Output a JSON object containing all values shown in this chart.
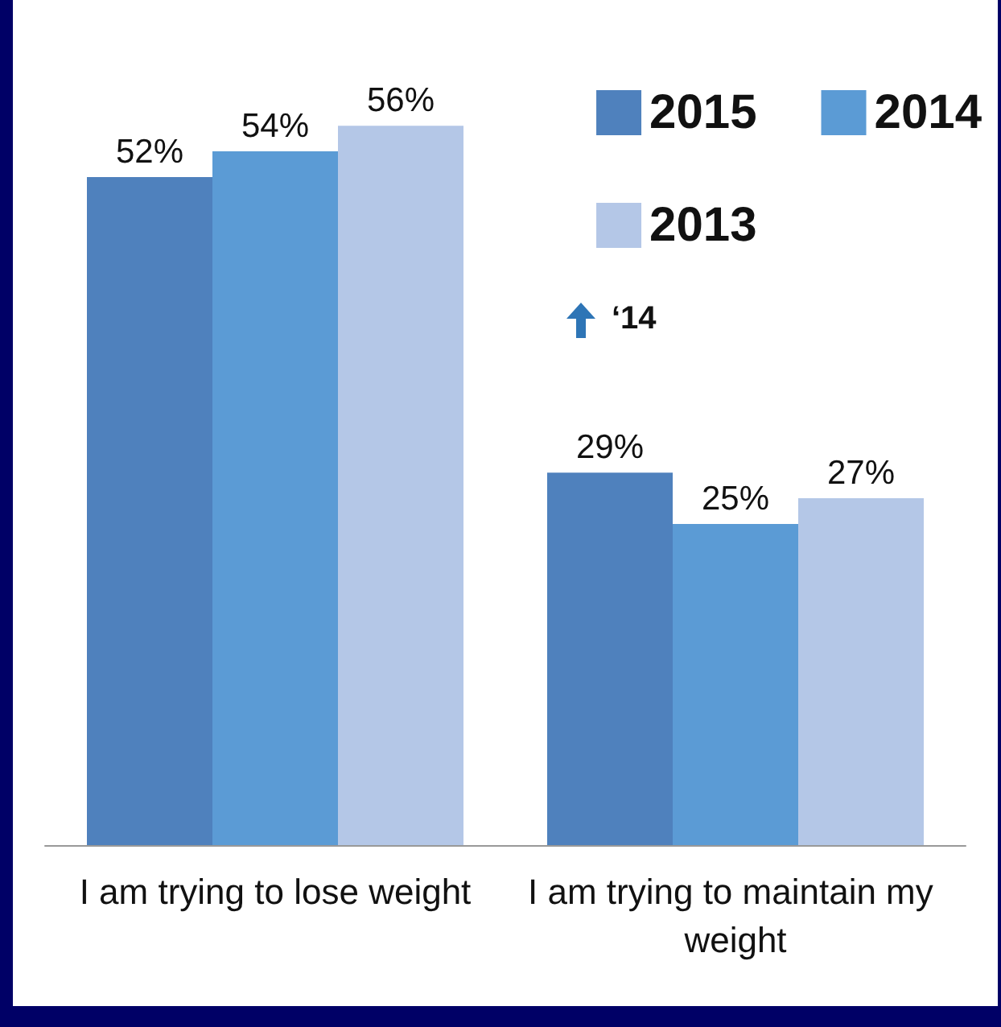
{
  "chart_data": {
    "type": "bar",
    "categories": [
      "I am trying to lose weight",
      "I am trying to maintain my weight"
    ],
    "series": [
      {
        "name": "2015",
        "color": "#4f81bd",
        "values": [
          52,
          29
        ],
        "value_labels": [
          "52%",
          "29%"
        ]
      },
      {
        "name": "2014",
        "color": "#5b9bd5",
        "values": [
          54,
          25
        ],
        "value_labels": [
          "54%",
          "25%"
        ]
      },
      {
        "name": "2013",
        "color": "#b4c7e7",
        "values": [
          56,
          27
        ],
        "value_labels": [
          "56%",
          "27%"
        ]
      }
    ],
    "legend": "top right",
    "annotations": [
      "‘14"
    ]
  }
}
